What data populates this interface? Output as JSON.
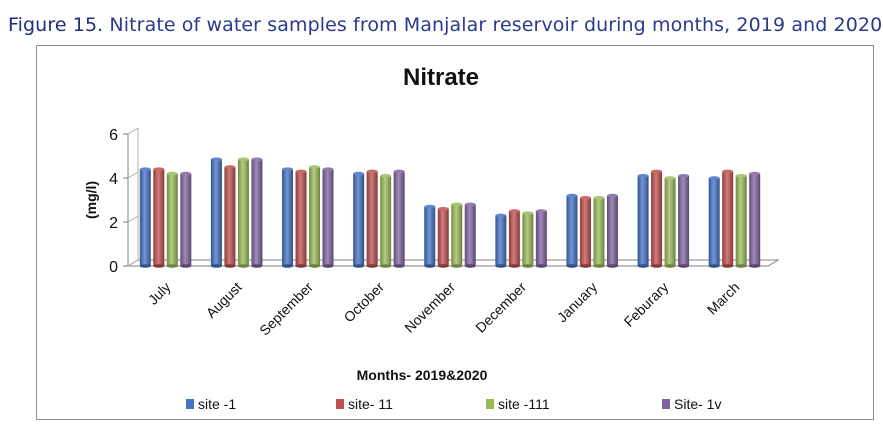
{
  "caption": {
    "label": "Figure 15.",
    "text": " Nitrate of water samples from Manjalar reservoir during months, 2019 and 2020."
  },
  "chart_data": {
    "type": "bar",
    "title": "Nitrate",
    "xlabel": "Months- 2019&2020",
    "ylabel": "(mg/l)",
    "ylim": [
      0,
      6
    ],
    "yticks": [
      "0",
      "2",
      "4",
      "6"
    ],
    "grid": false,
    "legend_position": "bottom",
    "categories": [
      "July",
      "August",
      "September",
      "October",
      "November",
      "December",
      "January",
      "Feburary",
      "March"
    ],
    "series": [
      {
        "name": "site -1",
        "color": "#4472c4",
        "values": [
          4.4,
          4.85,
          4.4,
          4.2,
          2.7,
          2.3,
          3.2,
          4.1,
          4.0
        ]
      },
      {
        "name": "site- 11",
        "color": "#c0504d",
        "values": [
          4.4,
          4.5,
          4.3,
          4.3,
          2.6,
          2.5,
          3.1,
          4.3,
          4.3
        ]
      },
      {
        "name": "site -111",
        "color": "#9bbb59",
        "values": [
          4.2,
          4.85,
          4.5,
          4.1,
          2.8,
          2.4,
          3.1,
          4.0,
          4.1
        ]
      },
      {
        "name": "Site- 1v",
        "color": "#8064a2",
        "values": [
          4.2,
          4.85,
          4.4,
          4.3,
          2.8,
          2.5,
          3.2,
          4.1,
          4.2
        ]
      }
    ]
  }
}
